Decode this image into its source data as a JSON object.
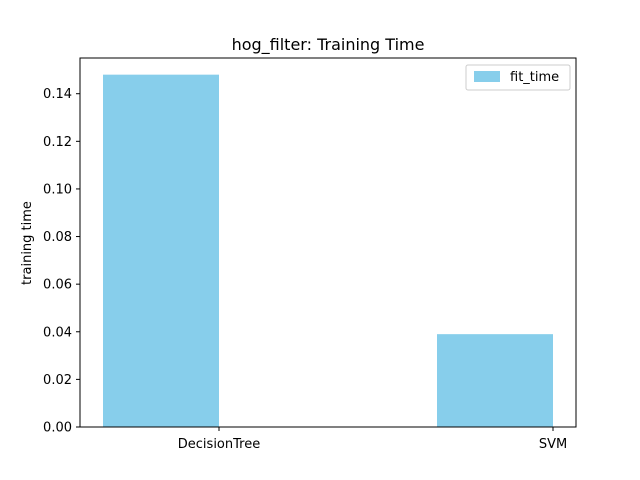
{
  "chart_data": {
    "type": "bar",
    "title": "hog_filter: Training Time",
    "xlabel": "",
    "ylabel": "training time",
    "categories": [
      "DecisionTree",
      "SVM"
    ],
    "series": [
      {
        "name": "fit_time",
        "values": [
          0.148,
          0.039
        ]
      }
    ],
    "ylim": [
      0,
      0.155
    ],
    "yticks": [
      0.0,
      0.02,
      0.04,
      0.06,
      0.08,
      0.1,
      0.12,
      0.14
    ],
    "ytick_labels": [
      "0.00",
      "0.02",
      "0.04",
      "0.06",
      "0.08",
      "0.10",
      "0.12",
      "0.14"
    ],
    "grid": false,
    "legend_position": "top-right",
    "colors": {
      "bar": "#87ceeb",
      "axis": "#000000",
      "background": "#ffffff"
    }
  }
}
